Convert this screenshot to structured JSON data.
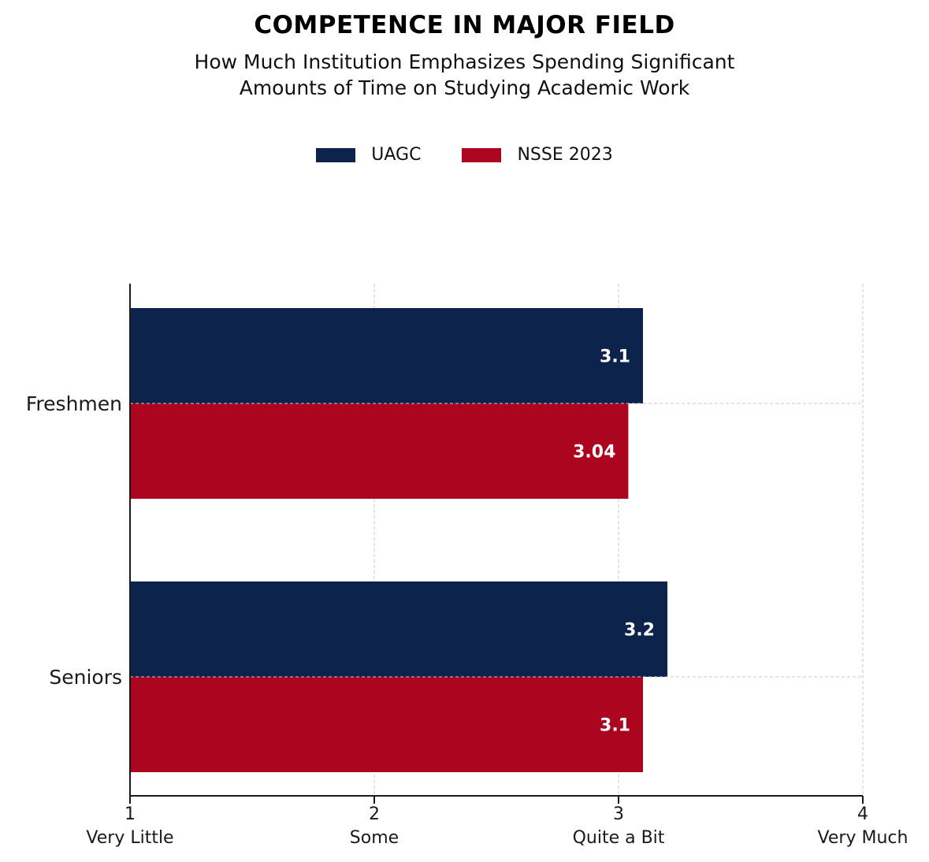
{
  "chart_data": {
    "type": "bar",
    "orientation": "horizontal",
    "title": "COMPETENCE IN MAJOR FIELD",
    "subtitle_lines": [
      "How Much Institution Emphasizes Spending Significant",
      "Amounts of Time on Studying Academic Work"
    ],
    "categories": [
      "Freshmen",
      "Seniors"
    ],
    "series": [
      {
        "name": "UAGC",
        "color": "#0c234b",
        "values": [
          3.1,
          3.2
        ],
        "labels": [
          "3.1",
          "3.2"
        ]
      },
      {
        "name": "NSSE 2023",
        "color": "#ab0520",
        "values": [
          3.04,
          3.1
        ],
        "labels": [
          "3.04",
          "3.1"
        ]
      }
    ],
    "xlim": [
      1,
      4
    ],
    "x_ticks": [
      1,
      2,
      3,
      4
    ],
    "x_tick_labels": [
      "1",
      "2",
      "3",
      "4"
    ],
    "x_tick_sublabels": [
      "Very Little",
      "Some",
      "Quite a Bit",
      "Very Much"
    ],
    "grid": true,
    "legend_position": "top-center"
  }
}
